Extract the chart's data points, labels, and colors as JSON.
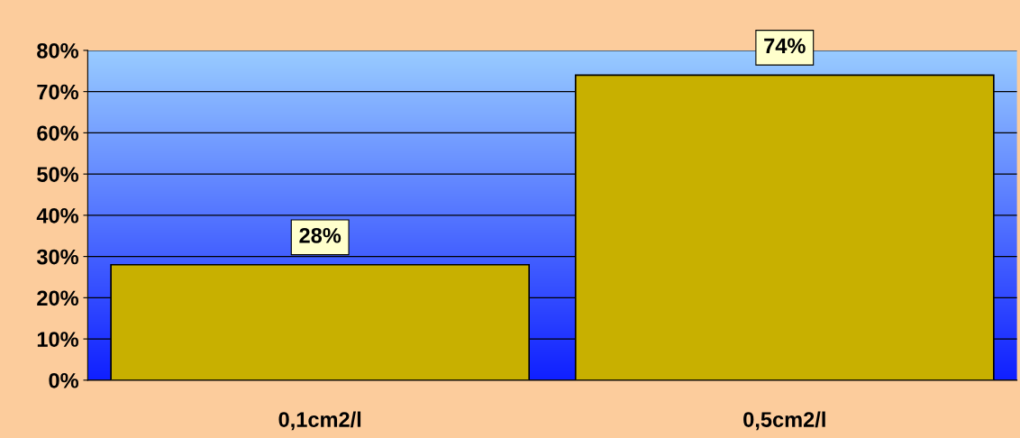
{
  "chart_data": {
    "type": "bar",
    "categories": [
      "0,1cm2/l",
      "0,5cm2/l"
    ],
    "values": [
      28,
      74
    ],
    "color": "#c8b000",
    "value_labels": [
      "28%",
      "74%"
    ],
    "ylim": [
      0,
      80
    ],
    "yticks": [
      {
        "value": 0,
        "label": "0%"
      },
      {
        "value": 10,
        "label": "10%"
      },
      {
        "value": 20,
        "label": "20%"
      },
      {
        "value": 30,
        "label": "30%"
      },
      {
        "value": 40,
        "label": "40%"
      },
      {
        "value": 50,
        "label": "50%"
      },
      {
        "value": 60,
        "label": "60%"
      },
      {
        "value": 70,
        "label": "70%"
      },
      {
        "value": 80,
        "label": "80%"
      }
    ],
    "grid": "y"
  }
}
